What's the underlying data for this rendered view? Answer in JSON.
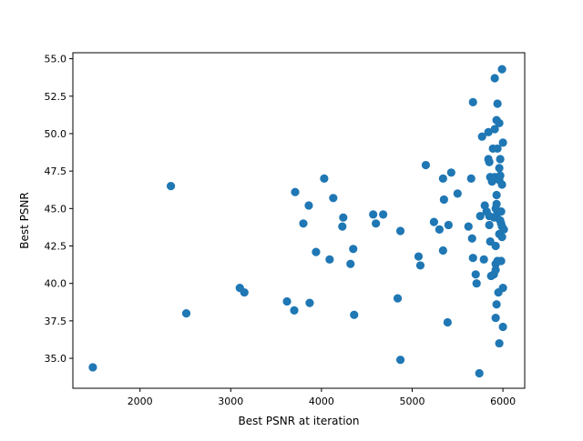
{
  "chart_data": {
    "type": "scatter",
    "title": "",
    "xlabel": "Best PSNR at iteration",
    "ylabel": "Best PSNR",
    "xlim": [
      1260,
      6240
    ],
    "ylim": [
      33.0,
      55.4
    ],
    "xticks": [
      2000,
      3000,
      4000,
      5000,
      6000
    ],
    "yticks": [
      35.0,
      37.5,
      40.0,
      42.5,
      45.0,
      47.5,
      50.0,
      52.5,
      55.0
    ],
    "xtick_labels": [
      "2000",
      "3000",
      "4000",
      "5000",
      "6000"
    ],
    "ytick_labels": [
      "35.0",
      "37.5",
      "40.0",
      "42.5",
      "45.0",
      "47.5",
      "50.0",
      "52.5",
      "55.0"
    ],
    "grid": false,
    "marker_color": "#1f77b4",
    "points": [
      [
        1480,
        34.4
      ],
      [
        2340,
        46.5
      ],
      [
        2510,
        38.0
      ],
      [
        3100,
        39.7
      ],
      [
        3150,
        39.4
      ],
      [
        3620,
        38.8
      ],
      [
        3700,
        38.2
      ],
      [
        3710,
        46.1
      ],
      [
        3800,
        44.0
      ],
      [
        3860,
        45.2
      ],
      [
        3870,
        38.7
      ],
      [
        3940,
        42.1
      ],
      [
        4030,
        47.0
      ],
      [
        4090,
        41.6
      ],
      [
        4130,
        45.7
      ],
      [
        4230,
        43.8
      ],
      [
        4240,
        44.4
      ],
      [
        4320,
        41.3
      ],
      [
        4350,
        42.3
      ],
      [
        4360,
        37.9
      ],
      [
        4570,
        44.6
      ],
      [
        4600,
        44.0
      ],
      [
        4680,
        44.6
      ],
      [
        4840,
        39.0
      ],
      [
        4870,
        43.5
      ],
      [
        4870,
        34.9
      ],
      [
        5070,
        41.8
      ],
      [
        5090,
        41.2
      ],
      [
        5150,
        47.9
      ],
      [
        5240,
        44.1
      ],
      [
        5300,
        43.6
      ],
      [
        5340,
        47.0
      ],
      [
        5340,
        42.2
      ],
      [
        5350,
        45.6
      ],
      [
        5390,
        37.4
      ],
      [
        5400,
        43.9
      ],
      [
        5430,
        47.4
      ],
      [
        5500,
        46.0
      ],
      [
        5620,
        43.8
      ],
      [
        5650,
        47.0
      ],
      [
        5660,
        43.0
      ],
      [
        5670,
        41.7
      ],
      [
        5670,
        52.1
      ],
      [
        5700,
        40.6
      ],
      [
        5710,
        40.0
      ],
      [
        5740,
        34.0
      ],
      [
        5750,
        44.5
      ],
      [
        5770,
        49.8
      ],
      [
        5790,
        41.6
      ],
      [
        5800,
        45.2
      ],
      [
        5820,
        44.8
      ],
      [
        5840,
        50.1
      ],
      [
        5840,
        48.3
      ],
      [
        5850,
        48.1
      ],
      [
        5850,
        44.5
      ],
      [
        5850,
        43.9
      ],
      [
        5860,
        47.1
      ],
      [
        5860,
        42.8
      ],
      [
        5870,
        40.5
      ],
      [
        5880,
        46.8
      ],
      [
        5890,
        49.0
      ],
      [
        5900,
        44.4
      ],
      [
        5900,
        40.6
      ],
      [
        5910,
        53.7
      ],
      [
        5910,
        50.3
      ],
      [
        5910,
        47.1
      ],
      [
        5920,
        45.0
      ],
      [
        5920,
        42.5
      ],
      [
        5920,
        41.3
      ],
      [
        5920,
        40.9
      ],
      [
        5920,
        37.7
      ],
      [
        5930,
        50.9
      ],
      [
        5930,
        45.9
      ],
      [
        5930,
        45.3
      ],
      [
        5930,
        44.4
      ],
      [
        5930,
        38.6
      ],
      [
        5940,
        52.0
      ],
      [
        5940,
        49.0
      ],
      [
        5940,
        44.7
      ],
      [
        5940,
        41.5
      ],
      [
        5950,
        39.4
      ],
      [
        5960,
        50.7
      ],
      [
        5960,
        47.7
      ],
      [
        5960,
        46.9
      ],
      [
        5960,
        43.3
      ],
      [
        5960,
        36.0
      ],
      [
        5970,
        48.3
      ],
      [
        5970,
        47.2
      ],
      [
        5970,
        44.2
      ],
      [
        5980,
        44.8
      ],
      [
        5980,
        44.0
      ],
      [
        5980,
        41.5
      ],
      [
        5990,
        54.3
      ],
      [
        5990,
        46.6
      ],
      [
        5990,
        43.8
      ],
      [
        5990,
        43.1
      ],
      [
        6000,
        49.4
      ],
      [
        6000,
        39.7
      ],
      [
        6000,
        37.1
      ],
      [
        6010,
        43.6
      ]
    ]
  }
}
